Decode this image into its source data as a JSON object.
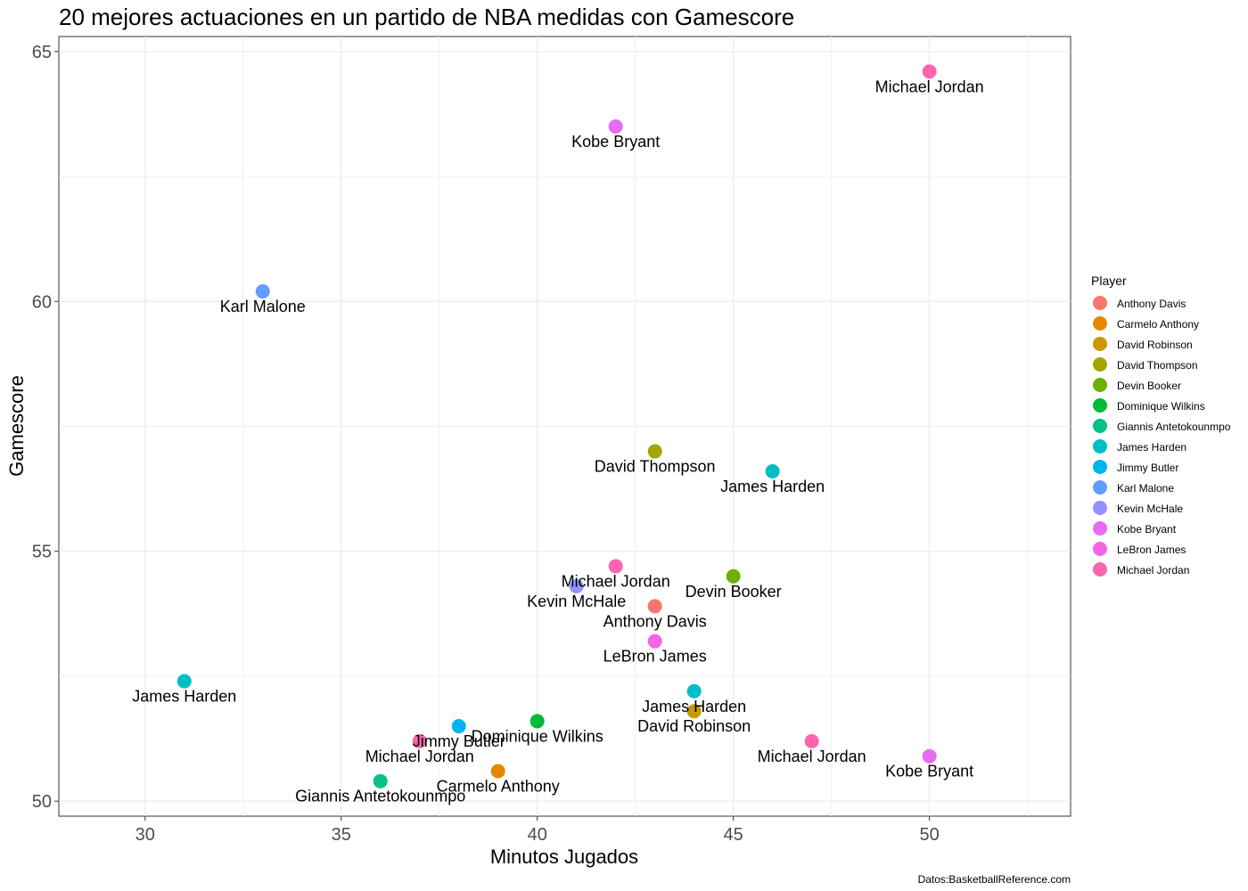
{
  "chart_data": {
    "type": "scatter",
    "title": "20 mejores actuaciones en un partido de NBA medidas con Gamescore",
    "xlabel": "Minutos Jugados",
    "ylabel": "Gamescore",
    "caption": "Datos:BasketballReference.com",
    "xlim": [
      27.8,
      53.6
    ],
    "ylim": [
      49.7,
      65.3
    ],
    "xticks": [
      30,
      35,
      40,
      45,
      50
    ],
    "yticks": [
      50,
      55,
      60,
      65
    ],
    "grid": true,
    "legend": {
      "title": "Player",
      "position": "right",
      "entries": [
        {
          "name": "Anthony Davis",
          "color": "#F8766D"
        },
        {
          "name": "Carmelo Anthony",
          "color": "#E58700"
        },
        {
          "name": "David Robinson",
          "color": "#C99800"
        },
        {
          "name": "David Thompson",
          "color": "#A3A500"
        },
        {
          "name": "Devin Booker",
          "color": "#6BB100"
        },
        {
          "name": "Dominique Wilkins",
          "color": "#00BA38"
        },
        {
          "name": "Giannis Antetokounmpo",
          "color": "#00C08B"
        },
        {
          "name": "James Harden",
          "color": "#00BFC4"
        },
        {
          "name": "Jimmy Butler",
          "color": "#00B4F0"
        },
        {
          "name": "Karl Malone",
          "color": "#619CFF"
        },
        {
          "name": "Kevin McHale",
          "color": "#9590FF"
        },
        {
          "name": "Kobe Bryant",
          "color": "#E76BF3"
        },
        {
          "name": "LeBron James",
          "color": "#F564E3"
        },
        {
          "name": "Michael Jordan",
          "color": "#FF64B0"
        }
      ]
    },
    "points": [
      {
        "player": "Michael Jordan",
        "x": 50,
        "y": 64.6
      },
      {
        "player": "Kobe Bryant",
        "x": 42,
        "y": 63.5
      },
      {
        "player": "Karl Malone",
        "x": 33,
        "y": 60.2
      },
      {
        "player": "David Thompson",
        "x": 43,
        "y": 57.0
      },
      {
        "player": "James Harden",
        "x": 46,
        "y": 56.6
      },
      {
        "player": "Michael Jordan",
        "x": 42,
        "y": 54.7
      },
      {
        "player": "Devin Booker",
        "x": 45,
        "y": 54.5
      },
      {
        "player": "Kevin McHale",
        "x": 41,
        "y": 54.3
      },
      {
        "player": "Anthony Davis",
        "x": 43,
        "y": 53.9
      },
      {
        "player": "LeBron James",
        "x": 43,
        "y": 53.2
      },
      {
        "player": "James Harden",
        "x": 31,
        "y": 52.4
      },
      {
        "player": "James Harden",
        "x": 44,
        "y": 52.2
      },
      {
        "player": "David Robinson",
        "x": 44,
        "y": 51.8
      },
      {
        "player": "Dominique Wilkins",
        "x": 40,
        "y": 51.6
      },
      {
        "player": "Jimmy Butler",
        "x": 38,
        "y": 51.5
      },
      {
        "player": "Michael Jordan",
        "x": 37,
        "y": 51.2
      },
      {
        "player": "Michael Jordan",
        "x": 47,
        "y": 51.2
      },
      {
        "player": "Kobe Bryant",
        "x": 50,
        "y": 50.9
      },
      {
        "player": "Carmelo Anthony",
        "x": 39,
        "y": 50.6
      },
      {
        "player": "Giannis Antetokounmpo",
        "x": 36,
        "y": 50.4
      }
    ]
  }
}
